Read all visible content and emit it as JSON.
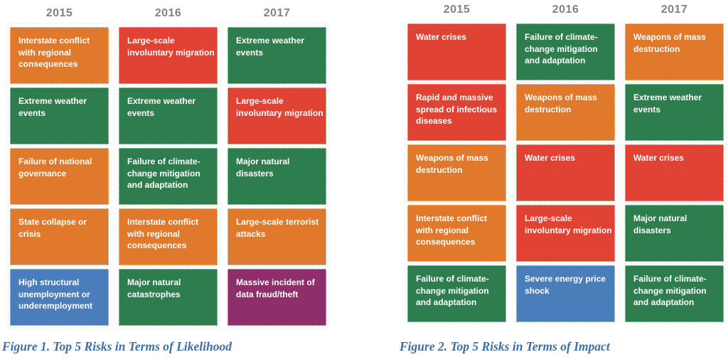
{
  "colors": {
    "orange": "#E1792D",
    "green": "#2E7D4F",
    "red": "#E04234",
    "blue": "#4A7EBB",
    "purple": "#8E2F6B",
    "header_gray": "#808285",
    "caption_blue": "#3C6FA5"
  },
  "chart_data": [
    {
      "type": "table",
      "caption": "Figure 1. Top 5 Risks in Terms of Likelihood",
      "column_headers": [
        "2015",
        "2016",
        "2017"
      ],
      "columns": [
        {
          "year": "2015",
          "tiles": [
            {
              "label": "Interstate conflict with regional consequences",
              "color": "orange"
            },
            {
              "label": "Extreme weather events",
              "color": "green"
            },
            {
              "label": "Failure of national governance",
              "color": "orange"
            },
            {
              "label": "State collapse or crisis",
              "color": "orange"
            },
            {
              "label": "High structural unemployment or underemployment",
              "color": "blue"
            }
          ]
        },
        {
          "year": "2016",
          "tiles": [
            {
              "label": "Large-scale involuntary migration",
              "color": "red"
            },
            {
              "label": "Extreme weather events",
              "color": "green"
            },
            {
              "label": "Failure of climate-change mitigation and adaptation",
              "color": "green"
            },
            {
              "label": "Interstate conflict with regional consequences",
              "color": "orange"
            },
            {
              "label": "Major natural catastrophes",
              "color": "green"
            }
          ]
        },
        {
          "year": "2017",
          "tiles": [
            {
              "label": "Extreme weather events",
              "color": "green"
            },
            {
              "label": "Large-scale involuntary migration",
              "color": "red"
            },
            {
              "label": "Major natural disasters",
              "color": "green"
            },
            {
              "label": "Large-scale terrorist attacks",
              "color": "orange"
            },
            {
              "label": "Massive incident of data fraud/theft",
              "color": "purple"
            }
          ]
        }
      ]
    },
    {
      "type": "table",
      "caption": "Figure 2. Top 5 Risks in Terms of Impact",
      "column_headers": [
        "2015",
        "2016",
        "2017"
      ],
      "columns": [
        {
          "year": "2015",
          "tiles": [
            {
              "label": "Water crises",
              "color": "red"
            },
            {
              "label": "Rapid and massive spread of infectious diseases",
              "color": "red"
            },
            {
              "label": "Weapons of mass destruction",
              "color": "orange"
            },
            {
              "label": "Interstate conflict with regional consequences",
              "color": "orange"
            },
            {
              "label": "Failure of climate-change mitigation and adaptation",
              "color": "green"
            }
          ]
        },
        {
          "year": "2016",
          "tiles": [
            {
              "label": "Failure of climate-change mitigation and adaptation",
              "color": "green"
            },
            {
              "label": "Weapons of mass destruction",
              "color": "orange"
            },
            {
              "label": "Water crises",
              "color": "red"
            },
            {
              "label": "Large-scale involuntary migration",
              "color": "red"
            },
            {
              "label": "Severe energy price shock",
              "color": "blue"
            }
          ]
        },
        {
          "year": "2017",
          "tiles": [
            {
              "label": "Weapons of mass destruction",
              "color": "orange"
            },
            {
              "label": "Extreme weather events",
              "color": "green"
            },
            {
              "label": "Water crises",
              "color": "red"
            },
            {
              "label": "Major natural disasters",
              "color": "green"
            },
            {
              "label": "Failure of climate-change mitigation and adaptation",
              "color": "green"
            }
          ]
        }
      ]
    }
  ]
}
